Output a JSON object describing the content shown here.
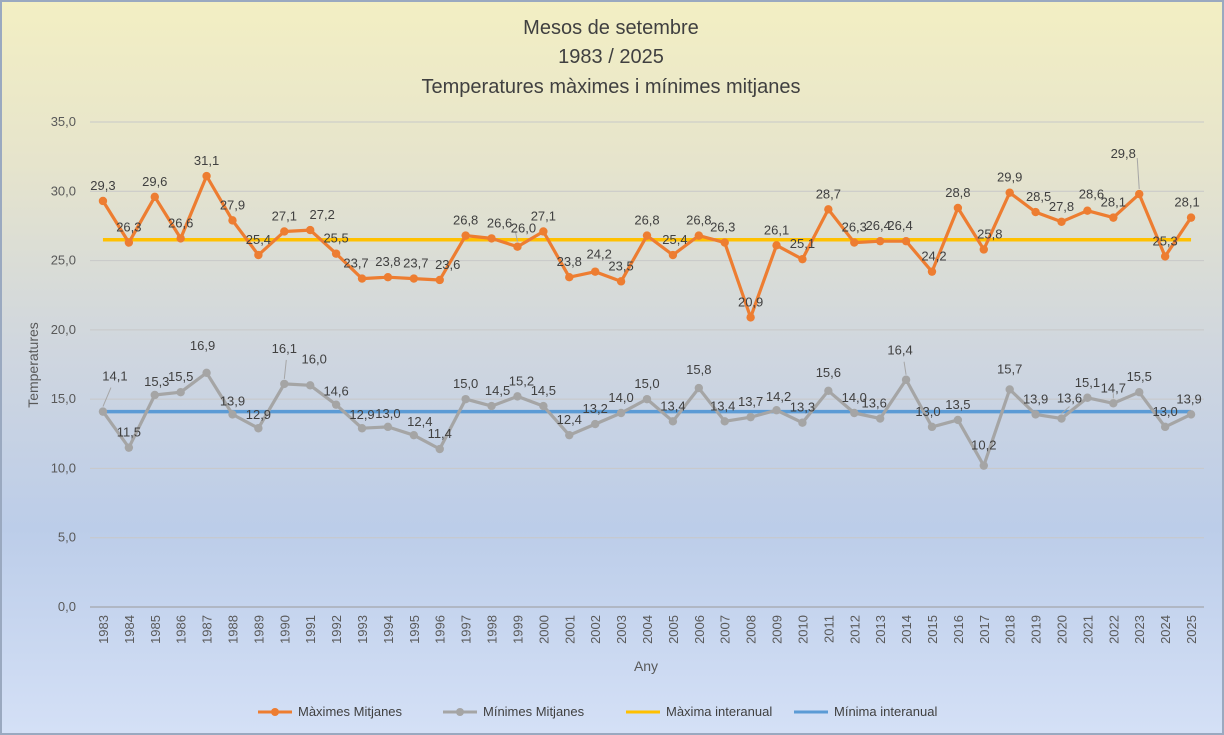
{
  "chart_data": {
    "type": "line",
    "title": [
      "Mesos de setembre",
      "1983 / 2025",
      "Temperatures màximes i mínimes mitjanes"
    ],
    "xlabel": "Any",
    "ylabel": "Temperatures",
    "ylim": [
      0,
      35
    ],
    "yticks": [
      "0,0",
      "5,0",
      "10,0",
      "15,0",
      "20,0",
      "25,0",
      "30,0",
      "35,0"
    ],
    "grid": true,
    "legend_position": "bottom",
    "categories": [
      "1983",
      "1984",
      "1985",
      "1986",
      "1987",
      "1988",
      "1989",
      "1990",
      "1991",
      "1992",
      "1993",
      "1994",
      "1995",
      "1996",
      "1997",
      "1998",
      "1999",
      "2000",
      "2001",
      "2002",
      "2003",
      "2004",
      "2005",
      "2006",
      "2007",
      "2008",
      "2009",
      "2010",
      "2011",
      "2012",
      "2013",
      "2014",
      "2015",
      "2016",
      "2017",
      "2018",
      "2019",
      "2020",
      "2021",
      "2022",
      "2023",
      "2024",
      "2025"
    ],
    "series": [
      {
        "name": "Màximes Mitjanes",
        "color": "#ed7d31",
        "values": [
          29.3,
          26.3,
          29.6,
          26.6,
          31.1,
          27.9,
          25.4,
          27.1,
          27.2,
          25.5,
          23.7,
          23.8,
          23.7,
          23.6,
          26.8,
          26.6,
          26.0,
          27.1,
          23.8,
          24.2,
          23.5,
          26.8,
          25.4,
          26.8,
          26.3,
          20.9,
          26.1,
          25.1,
          28.7,
          26.3,
          26.4,
          26.4,
          24.2,
          28.8,
          25.8,
          29.9,
          28.5,
          27.8,
          28.6,
          28.1,
          29.8,
          25.3,
          28.1
        ],
        "labels": [
          "29,3",
          "26,3",
          "29,6",
          "26,6",
          "31,1",
          "27,9",
          "25,4",
          "27,1",
          "27,2",
          "25,5",
          "23,7",
          "23,8",
          "23,7",
          "23,6",
          "26,8",
          "26,6",
          "26,0",
          "27,1",
          "23,8",
          "24,2",
          "23,5",
          "26,8",
          "25,4",
          "26,8",
          "26,3",
          "20,9",
          "26,1",
          "25,1",
          "28,7",
          "26,3",
          "26,4",
          "26,4",
          "24,2",
          "28,8",
          "25,8",
          "29,9",
          "28,5",
          "27,8",
          "28,6",
          "28,1",
          "29,8",
          "25,3",
          "28,1"
        ]
      },
      {
        "name": "Mínimes Mitjanes",
        "color": "#a5a5a5",
        "values": [
          14.1,
          11.5,
          15.3,
          15.5,
          16.9,
          13.9,
          12.9,
          16.1,
          16.0,
          14.6,
          12.9,
          13.0,
          12.4,
          11.4,
          15.0,
          14.5,
          15.2,
          14.5,
          12.4,
          13.2,
          14.0,
          15.0,
          13.4,
          15.8,
          13.4,
          13.7,
          14.2,
          13.3,
          15.6,
          14.0,
          13.6,
          16.4,
          13.0,
          13.5,
          10.2,
          15.7,
          13.9,
          13.6,
          15.1,
          14.7,
          15.5,
          13.0,
          13.9
        ],
        "labels": [
          "14,1",
          "11,5",
          "15,3",
          "15,5",
          "16,9",
          "13,9",
          "12,9",
          "16,1",
          "16,0",
          "14,6",
          "12,9",
          "13,0",
          "12,4",
          "11,4",
          "15,0",
          "14,5",
          "15,2",
          "14,5",
          "12,4",
          "13,2",
          "14,0",
          "15,0",
          "13,4",
          "15,8",
          "13,4",
          "13,7",
          "14,2",
          "13,3",
          "15,6",
          "14,0",
          "13,6",
          "16,4",
          "13,0",
          "13,5",
          "10,2",
          "15,7",
          "13,9",
          "13,6",
          "15,1",
          "14,7",
          "15,5",
          "13,0",
          "13,9"
        ]
      },
      {
        "name": "Màxima interanual",
        "color": "#ffc000",
        "value": 26.5
      },
      {
        "name": "Mínima interanual",
        "color": "#5b9bd5",
        "value": 14.1
      }
    ]
  }
}
